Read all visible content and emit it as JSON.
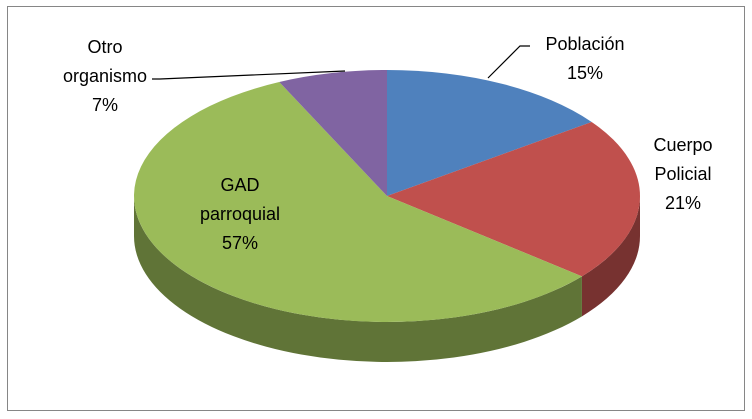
{
  "chart_data": {
    "type": "pie",
    "categories": [
      "Población",
      "Cuerpo Policial",
      "GAD parroquial",
      "Otro organismo"
    ],
    "values": [
      15,
      21,
      57,
      7
    ],
    "value_labels": [
      "15%",
      "21%",
      "57%",
      "7%"
    ],
    "colors": [
      "#4f81bd",
      "#c0504d",
      "#9bbb59",
      "#8064a2"
    ],
    "start_angle": 0,
    "direction": "clockwise",
    "three_d": true
  }
}
